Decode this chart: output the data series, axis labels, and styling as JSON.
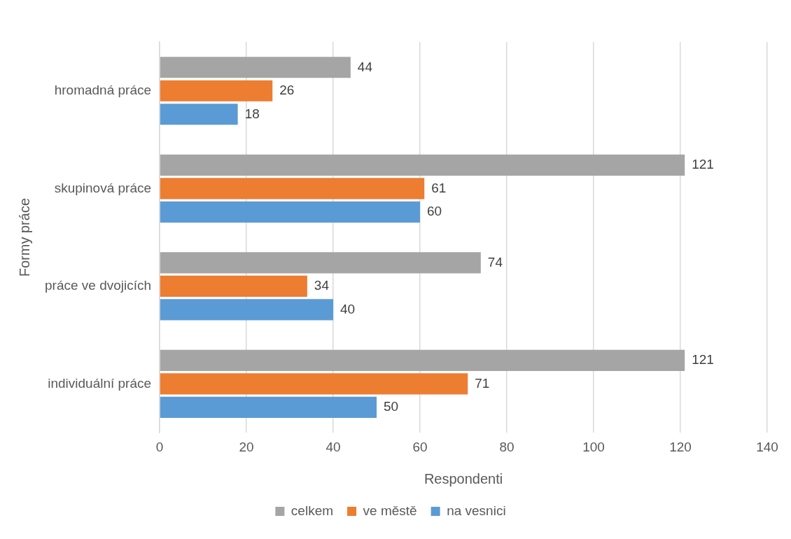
{
  "chart_data": {
    "type": "bar",
    "orientation": "horizontal",
    "xlabel": "Respondenti",
    "ylabel": "Formy práce",
    "categories": [
      "hromadná práce",
      "skupinová práce",
      "práce ve dvojicích",
      "individuální práce"
    ],
    "series": [
      {
        "name": "celkem",
        "color": "#a5a5a5",
        "values": [
          44,
          121,
          74,
          121
        ]
      },
      {
        "name": "ve městě",
        "color": "#ed7d31",
        "values": [
          26,
          61,
          34,
          71
        ]
      },
      {
        "name": "na vesnici",
        "color": "#5b9bd5",
        "values": [
          18,
          60,
          40,
          50
        ]
      }
    ],
    "xlim": [
      0,
      140
    ],
    "xticks": [
      0,
      20,
      40,
      60,
      80,
      100,
      120,
      140
    ],
    "grid": "x",
    "legend": "bottom",
    "data_labels": true
  }
}
